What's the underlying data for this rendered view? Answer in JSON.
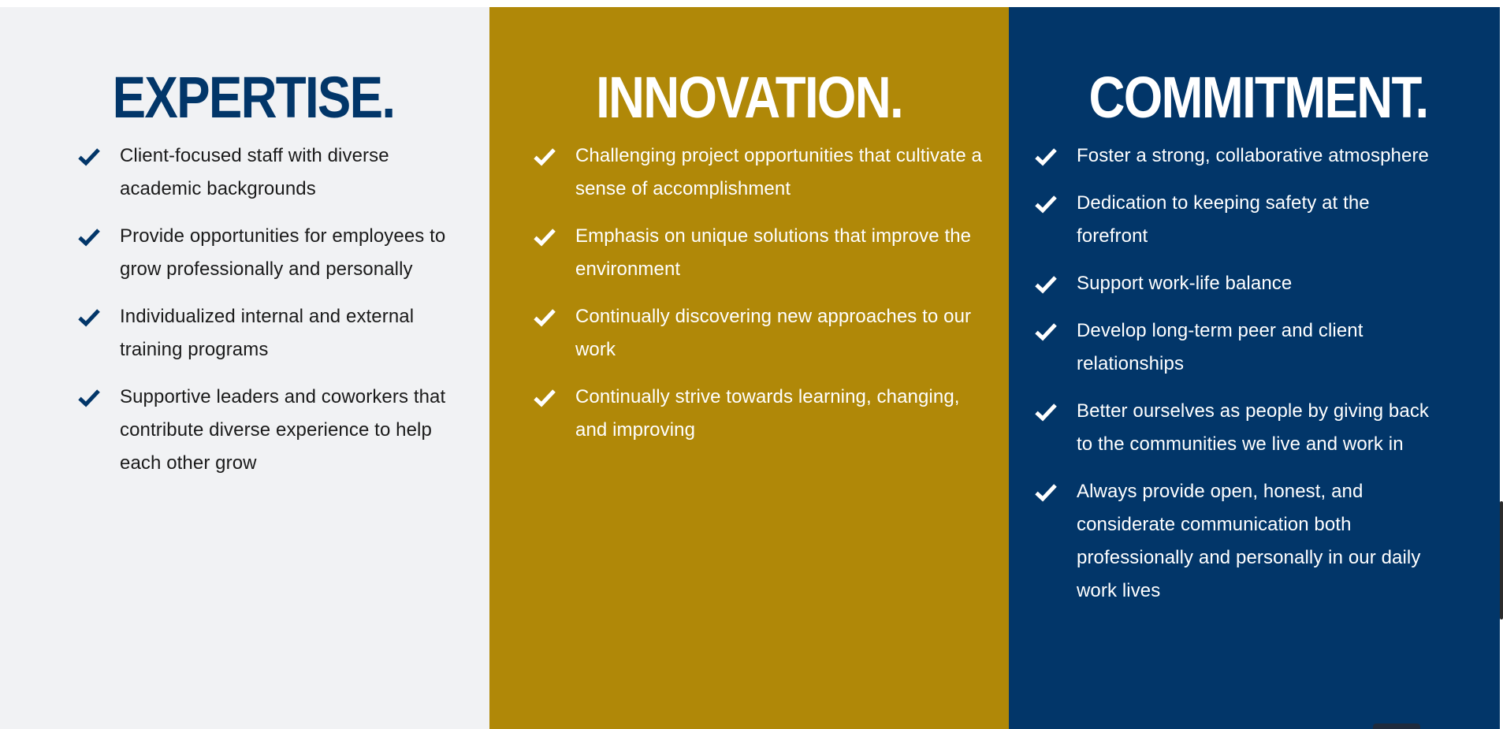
{
  "colors": {
    "expertise_bg": "#f1f2f4",
    "innovation_bg": "#b08808",
    "commitment_bg": "#023669",
    "navy": "#023669",
    "white": "#ffffff"
  },
  "icons": {
    "bullet": "check-icon"
  },
  "columns": [
    {
      "title": "EXPERTISE.",
      "items": [
        "Client-focused staff with diverse academic backgrounds",
        "Provide opportunities for employees to grow professionally and personally",
        "Individualized internal and external training programs",
        "Supportive leaders and coworkers that contribute diverse experience to help each other grow"
      ]
    },
    {
      "title": "INNOVATION.",
      "items": [
        "Challenging project opportunities that cultivate a sense of accomplishment",
        "Emphasis on unique solutions that improve the environment",
        "Continually discovering new approaches to our work",
        "Continually strive towards learning, changing, and improving"
      ]
    },
    {
      "title": "COMMITMENT.",
      "items": [
        "Foster a strong, collaborative atmosphere",
        "Dedication to keeping safety at the forefront",
        "Support work-life balance",
        "Develop long-term peer and client relationships",
        "Better ourselves as people by giving back to the communities we live and work in",
        "Always provide open, honest, and considerate communication both professionally and personally in our daily work lives"
      ]
    }
  ]
}
